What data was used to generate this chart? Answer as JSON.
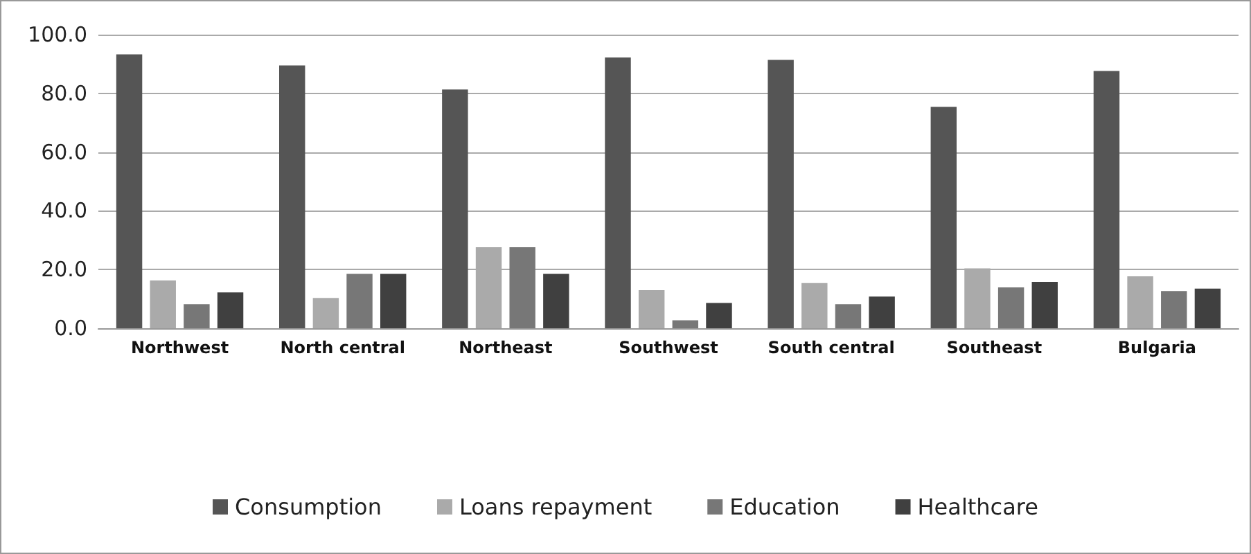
{
  "chart_data": {
    "type": "bar",
    "categories": [
      "Northwest",
      "North central",
      "Northeast",
      "Southwest",
      "South central",
      "Southeast",
      "Bulgaria"
    ],
    "series": [
      {
        "name": "Consumption",
        "color": "#555555",
        "values": [
          93.3,
          89.5,
          81.3,
          92.2,
          91.4,
          75.4,
          87.6
        ]
      },
      {
        "name": "Loans repayment",
        "color": "#aaaaaa",
        "values": [
          16.3,
          10.3,
          27.6,
          13.0,
          15.4,
          20.4,
          17.7
        ]
      },
      {
        "name": "Education",
        "color": "#777777",
        "values": [
          8.2,
          18.5,
          27.6,
          2.7,
          8.2,
          13.9,
          12.7
        ]
      },
      {
        "name": "Healthcare",
        "color": "#404040",
        "values": [
          12.2,
          18.5,
          18.5,
          8.6,
          10.8,
          15.8,
          13.5
        ]
      }
    ],
    "ylim": [
      0,
      100
    ],
    "yticks": [
      {
        "value": 0,
        "label": "0.0"
      },
      {
        "value": 20,
        "label": "20.0"
      },
      {
        "value": 40,
        "label": "40.0"
      },
      {
        "value": 60,
        "label": "60.0"
      },
      {
        "value": 80,
        "label": "80.0"
      },
      {
        "value": 100,
        "label": "100.0"
      }
    ],
    "grid": "y",
    "legend": "bottom"
  }
}
